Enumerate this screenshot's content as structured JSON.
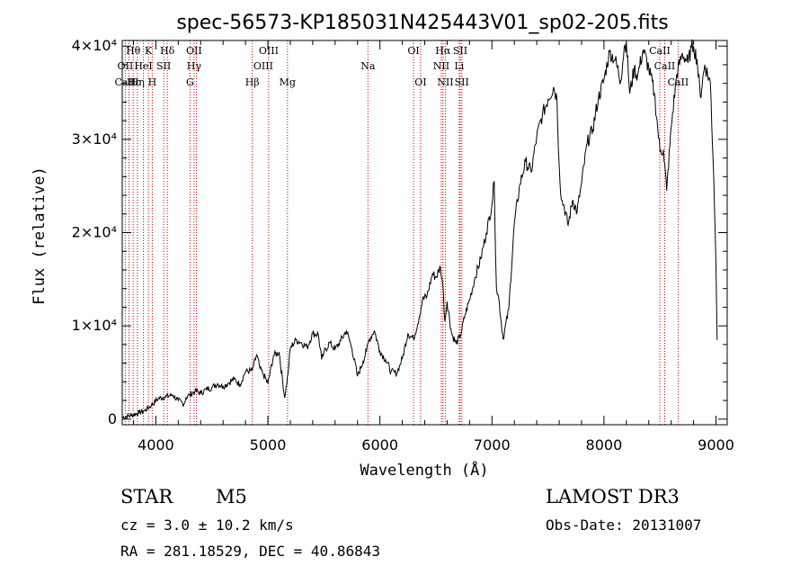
{
  "chart_data": {
    "type": "line",
    "title": "spec-56573-KP185031N425443V01_sp02-205.fits",
    "xlabel": "Wavelength (Å)",
    "ylabel": "Flux (relative)",
    "xlim": [
      3700,
      9100
    ],
    "ylim": [
      -600,
      40600
    ],
    "x_ticks": [
      {
        "value": 4000,
        "label": "4000"
      },
      {
        "value": 5000,
        "label": "5000"
      },
      {
        "value": 6000,
        "label": "6000"
      },
      {
        "value": 7000,
        "label": "7000"
      },
      {
        "value": 8000,
        "label": "8000"
      },
      {
        "value": 9000,
        "label": "9000"
      }
    ],
    "y_ticks": [
      {
        "value": 0,
        "label": "0"
      },
      {
        "value": 10000,
        "label": "1×10⁴"
      },
      {
        "value": 20000,
        "label": "2×10⁴"
      },
      {
        "value": 30000,
        "label": "3×10⁴"
      },
      {
        "value": 40000,
        "label": "4×10⁴"
      }
    ],
    "series": [
      {
        "name": "flux",
        "x": [
          3700,
          3780,
          3850,
          3900,
          3960,
          4020,
          4080,
          4150,
          4200,
          4250,
          4270,
          4300,
          4350,
          4400,
          4450,
          4500,
          4550,
          4600,
          4650,
          4700,
          4750,
          4800,
          4860,
          4900,
          4930,
          4960,
          5000,
          5050,
          5100,
          5150,
          5180,
          5200,
          5250,
          5300,
          5350,
          5400,
          5450,
          5480,
          5500,
          5550,
          5600,
          5650,
          5700,
          5750,
          5800,
          5850,
          5880,
          5900,
          5950,
          6000,
          6050,
          6100,
          6150,
          6200,
          6250,
          6300,
          6350,
          6380,
          6420,
          6470,
          6500,
          6540,
          6560,
          6580,
          6600,
          6640,
          6680,
          6720,
          6760,
          6800,
          6850,
          6900,
          6950,
          7000,
          7020,
          7040,
          7060,
          7100,
          7150,
          7200,
          7250,
          7300,
          7350,
          7400,
          7450,
          7500,
          7550,
          7580,
          7600,
          7620,
          7640,
          7680,
          7720,
          7760,
          7800,
          7850,
          7900,
          7950,
          8000,
          8050,
          8100,
          8150,
          8180,
          8200,
          8230,
          8270,
          8300,
          8350,
          8400,
          8450,
          8480,
          8500,
          8530,
          8560,
          8600,
          8650,
          8700,
          8750,
          8780,
          8800,
          8830,
          8860,
          8900,
          8950,
          8980,
          9000,
          9010
        ],
        "y": [
          200,
          400,
          700,
          900,
          1500,
          2200,
          2400,
          2600,
          2000,
          1600,
          2300,
          2600,
          3000,
          2800,
          3200,
          3400,
          3800,
          3500,
          3900,
          4300,
          3700,
          5100,
          5200,
          6900,
          5400,
          4800,
          3800,
          6800,
          7200,
          2300,
          4900,
          7600,
          8500,
          8200,
          7700,
          9200,
          9100,
          6400,
          7100,
          8200,
          7500,
          8400,
          9500,
          7600,
          4600,
          6200,
          7300,
          8400,
          9500,
          7300,
          6400,
          5100,
          4900,
          6500,
          9200,
          8600,
          10900,
          12800,
          13200,
          15600,
          15200,
          16300,
          14700,
          10500,
          12600,
          9200,
          8100,
          9000,
          11200,
          12800,
          15200,
          17200,
          20000,
          23000,
          25500,
          14000,
          13000,
          8600,
          11800,
          21000,
          25200,
          27600,
          26500,
          30300,
          32600,
          34300,
          35600,
          34400,
          27200,
          23500,
          23000,
          20800,
          23500,
          22200,
          25300,
          29600,
          31100,
          34400,
          36400,
          39400,
          38500,
          36300,
          39800,
          40400,
          34900,
          37600,
          36800,
          39600,
          37600,
          34900,
          31200,
          28700,
          28900,
          24500,
          31300,
          37000,
          39200,
          38200,
          39800,
          40000,
          38600,
          34600,
          38000,
          36000,
          26000,
          16500,
          8500
        ]
      }
    ],
    "spectral_lines": [
      {
        "label": "Hθ",
        "wave": 3798,
        "row": 0
      },
      {
        "label": "K",
        "wave": 3934,
        "row": 0
      },
      {
        "label": "Hδ",
        "wave": 4102,
        "row": 0
      },
      {
        "label": "OII",
        "wave": 4341,
        "row": 0
      },
      {
        "label": "OIII",
        "wave": 5007,
        "row": 0
      },
      {
        "label": "OI",
        "wave": 6300,
        "row": 0
      },
      {
        "label": "Hα",
        "wave": 6563,
        "row": 0
      },
      {
        "label": "SII",
        "wave": 6717,
        "row": 0
      },
      {
        "label": "CaII",
        "wave": 8498,
        "row": 0
      },
      {
        "label": "OII",
        "wave": 3727,
        "row": 1
      },
      {
        "label": "HeI",
        "wave": 3889,
        "row": 1
      },
      {
        "label": "SII",
        "wave": 4070,
        "row": 1
      },
      {
        "label": "Hγ",
        "wave": 4341,
        "row": 1
      },
      {
        "label": "OIII",
        "wave": 4959,
        "row": 1
      },
      {
        "label": "Na",
        "wave": 5893,
        "row": 1
      },
      {
        "label": "NII",
        "wave": 6548,
        "row": 1
      },
      {
        "label": "Li",
        "wave": 6708,
        "row": 1
      },
      {
        "label": "CaII",
        "wave": 8542,
        "row": 1
      },
      {
        "label": "CaII",
        "wave": 3727,
        "row": 2
      },
      {
        "label": "Hε",
        "wave": 3800,
        "row": 2
      },
      {
        "label": "Hη",
        "wave": 3835,
        "row": 2
      },
      {
        "label": "H",
        "wave": 3968,
        "row": 2
      },
      {
        "label": "G",
        "wave": 4305,
        "row": 2
      },
      {
        "label": "Hβ",
        "wave": 4861,
        "row": 2
      },
      {
        "label": "Mg",
        "wave": 5175,
        "row": 2
      },
      {
        "label": "OI",
        "wave": 6363,
        "row": 2
      },
      {
        "label": "NII",
        "wave": 6584,
        "row": 2
      },
      {
        "label": "SII",
        "wave": 6731,
        "row": 2
      },
      {
        "label": "CaII",
        "wave": 8662,
        "row": 2
      }
    ],
    "marker_lines": [
      3727,
      3760,
      3798,
      3835,
      3889,
      3934,
      3968,
      4070,
      4102,
      4305,
      4341,
      4363,
      4861,
      5007,
      5175,
      5893,
      6300,
      6363,
      6548,
      6563,
      6584,
      6708,
      6717,
      6731,
      8498,
      8542,
      8662
    ],
    "grid": false
  },
  "info": {
    "object_class": "STAR",
    "subclass": "M5",
    "redshift_text": "cz = 3.0 ± 10.2 km/s",
    "coords_text": "RA = 281.18529, DEC =  40.86843",
    "survey": "LAMOST DR3",
    "obs_date": "Obs-Date: 20131007"
  }
}
